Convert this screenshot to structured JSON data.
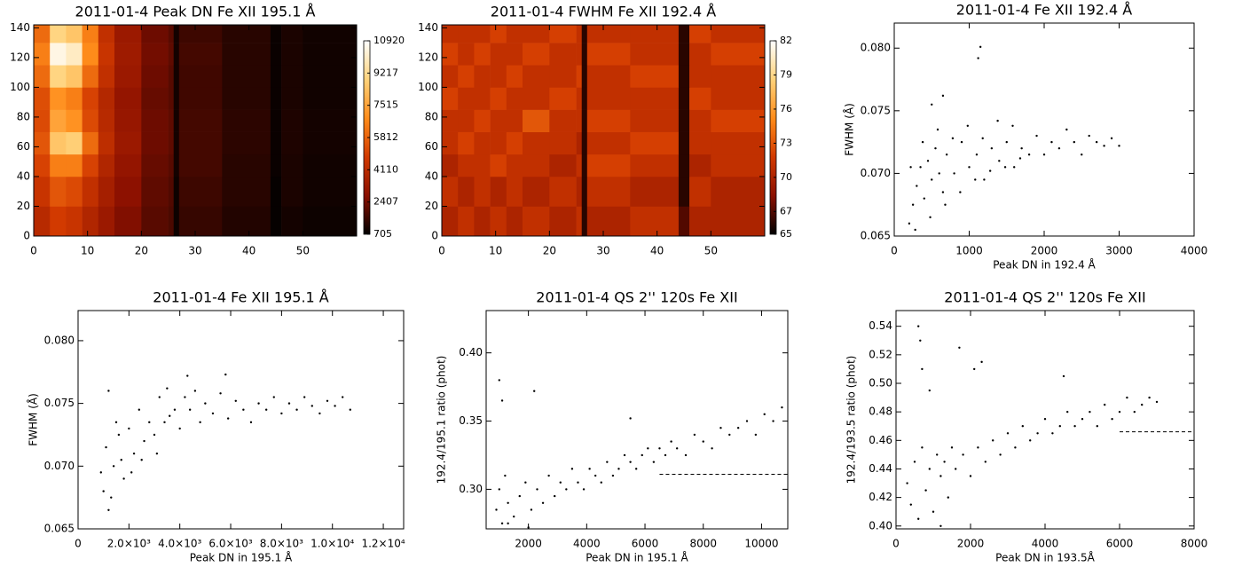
{
  "chart_data": [
    {
      "type": "heatmap",
      "title": "2011-01-4 Peak DN Fe XII 195.1 Å",
      "x": [
        0,
        3,
        6,
        9,
        12,
        15,
        20,
        25,
        26,
        27,
        35,
        44,
        46,
        50,
        60
      ],
      "y": [
        0,
        20,
        40,
        55,
        70,
        85,
        100,
        115,
        130,
        142
      ],
      "values": [
        [
          4000,
          4800,
          4500,
          3800,
          3200,
          2600,
          2000,
          1800,
          900,
          1500,
          1200,
          800,
          1000,
          900
        ],
        [
          4500,
          5500,
          5200,
          4300,
          3500,
          2800,
          2100,
          1900,
          900,
          1600,
          1300,
          800,
          1100,
          950
        ],
        [
          5000,
          6500,
          6500,
          5000,
          3800,
          3000,
          2200,
          2000,
          1000,
          1700,
          1300,
          850,
          1100,
          950
        ],
        [
          5500,
          8500,
          8800,
          6000,
          4200,
          3200,
          2300,
          2100,
          1000,
          1700,
          1350,
          850,
          1150,
          1000
        ],
        [
          5200,
          7500,
          7000,
          5200,
          4000,
          3100,
          2300,
          2100,
          1000,
          1700,
          1350,
          850,
          1150,
          1000
        ],
        [
          5300,
          7000,
          6500,
          5000,
          3900,
          3000,
          2200,
          2000,
          1000,
          1650,
          1300,
          850,
          1100,
          950
        ],
        [
          6000,
          9000,
          8500,
          6000,
          4300,
          3200,
          2300,
          2000,
          1000,
          1650,
          1300,
          850,
          1100,
          950
        ],
        [
          6500,
          10500,
          10000,
          6800,
          4500,
          3300,
          2400,
          2100,
          1000,
          1700,
          1300,
          850,
          1100,
          950
        ],
        [
          6000,
          9000,
          8500,
          6500,
          4300,
          3200,
          2300,
          2000,
          1000,
          1600,
          1300,
          850,
          1100,
          950
        ]
      ],
      "xlim": [
        0,
        60
      ],
      "xticks": [
        0,
        10,
        20,
        30,
        40,
        50
      ],
      "ylim": [
        0,
        142
      ],
      "yticks": [
        0,
        20,
        40,
        60,
        80,
        100,
        120,
        140
      ],
      "colorbar": {
        "lim": [
          705,
          10920
        ],
        "ticks": [
          705,
          2407,
          4110,
          5812,
          7515,
          9217,
          10920
        ]
      },
      "colors": [
        "#000000",
        "#8b1000",
        "#d23a00",
        "#ff8c1a",
        "#ffd27a",
        "#ffffff"
      ]
    },
    {
      "type": "heatmap",
      "title": "2011-01-4 FWHM  Fe XII 192.4 Å",
      "x": [
        0,
        3,
        6,
        9,
        12,
        15,
        20,
        25,
        26,
        27,
        35,
        44,
        46,
        50,
        60
      ],
      "y": [
        0,
        20,
        40,
        55,
        70,
        85,
        100,
        115,
        130,
        142
      ],
      "values": [
        [
          70,
          71,
          70,
          71,
          70,
          71,
          70,
          71,
          66,
          70,
          71,
          67,
          70,
          70
        ],
        [
          71,
          70,
          71,
          70,
          71,
          70,
          71,
          70,
          66,
          71,
          70,
          66,
          71,
          70
        ],
        [
          70,
          71,
          71,
          72,
          71,
          71,
          70,
          71,
          66,
          72,
          71,
          66,
          70,
          71
        ],
        [
          71,
          72,
          71,
          71,
          72,
          71,
          71,
          70,
          66,
          71,
          72,
          66,
          71,
          71
        ],
        [
          71,
          71,
          72,
          71,
          71,
          73,
          71,
          71,
          66,
          72,
          71,
          66,
          71,
          72
        ],
        [
          72,
          71,
          71,
          72,
          71,
          71,
          72,
          71,
          66,
          71,
          71,
          66,
          72,
          71
        ],
        [
          71,
          72,
          71,
          71,
          72,
          71,
          71,
          72,
          66,
          71,
          72,
          66,
          71,
          71
        ],
        [
          72,
          71,
          72,
          71,
          71,
          72,
          71,
          71,
          66,
          72,
          71,
          66,
          71,
          72
        ],
        [
          71,
          71,
          71,
          72,
          71,
          71,
          72,
          71,
          66,
          71,
          71,
          66,
          72,
          71
        ]
      ],
      "xlim": [
        0,
        60
      ],
      "xticks": [
        0,
        10,
        20,
        30,
        40,
        50
      ],
      "ylim": [
        0,
        142
      ],
      "yticks": [
        0,
        20,
        40,
        60,
        80,
        100,
        120,
        140
      ],
      "colorbar": {
        "lim": [
          65,
          82
        ],
        "ticks": [
          65,
          67,
          70,
          73,
          76,
          79,
          82
        ]
      },
      "colors": [
        "#000000",
        "#8b1000",
        "#d23a00",
        "#ff8c1a",
        "#ffd27a",
        "#ffffff"
      ]
    },
    {
      "type": "scatter",
      "title": "2011-01-4 Fe XII 192.4 Å",
      "xlabel": "Peak DN in 192.4 Å",
      "ylabel": "FWHM (Å)",
      "color": "#000000",
      "x": [
        200,
        250,
        300,
        350,
        400,
        450,
        500,
        550,
        600,
        650,
        700,
        800,
        900,
        1000,
        1100,
        1200,
        1300,
        1400,
        1500,
        1600,
        1700,
        1800,
        1900,
        2000,
        2100,
        2200,
        2300,
        2400,
        2500,
        2600,
        2700,
        2800,
        2900,
        3000,
        220,
        280,
        380,
        480,
        580,
        680,
        780,
        880,
        980,
        1080,
        1180,
        1280,
        1380,
        1480,
        1580,
        1680,
        1150,
        1120,
        500,
        650
      ],
      "values": [
        0.066,
        0.0675,
        0.069,
        0.0705,
        0.068,
        0.071,
        0.0695,
        0.072,
        0.07,
        0.0685,
        0.0715,
        0.07,
        0.0725,
        0.0705,
        0.0715,
        0.0695,
        0.072,
        0.071,
        0.0725,
        0.0705,
        0.072,
        0.0715,
        0.073,
        0.0715,
        0.0725,
        0.072,
        0.0735,
        0.0725,
        0.0715,
        0.073,
        0.0725,
        0.0722,
        0.0728,
        0.0722,
        0.0705,
        0.0655,
        0.0725,
        0.0665,
        0.0735,
        0.0675,
        0.0728,
        0.0685,
        0.0738,
        0.0695,
        0.0728,
        0.0702,
        0.0742,
        0.0705,
        0.0738,
        0.0712,
        0.0801,
        0.0792,
        0.0755,
        0.0762
      ],
      "xlim": [
        0,
        4000
      ],
      "xticks": [
        0,
        1000,
        2000,
        3000,
        4000
      ],
      "ylim": [
        0.065,
        0.082
      ],
      "yticks": [
        0.065,
        {
          "value": 0.07,
          "label": "0.070"
        },
        0.075,
        {
          "value": 0.08,
          "label": "0.080"
        }
      ]
    },
    {
      "type": "scatter",
      "title": "2011-01-4 Fe XII 195.1 Å",
      "xlabel": "Peak DN in 195.1 Å",
      "ylabel": "FWHM (Å)",
      "color": "#000000",
      "x": [
        1000,
        1100,
        1200,
        1400,
        1600,
        1800,
        2000,
        2200,
        2400,
        2600,
        2800,
        3000,
        3200,
        3400,
        3600,
        3800,
        4000,
        4200,
        4400,
        4600,
        4800,
        5000,
        5300,
        5600,
        5900,
        6200,
        6500,
        6800,
        7100,
        7400,
        7700,
        8000,
        8300,
        8600,
        8900,
        9200,
        9500,
        9800,
        10100,
        10400,
        10700,
        900,
        1300,
        1500,
        1700,
        2100,
        2500,
        3100,
        3500,
        4300,
        5800,
        1200
      ],
      "values": [
        0.068,
        0.0715,
        0.0665,
        0.07,
        0.0725,
        0.069,
        0.073,
        0.071,
        0.0745,
        0.072,
        0.0735,
        0.0725,
        0.0755,
        0.0735,
        0.074,
        0.0745,
        0.073,
        0.0755,
        0.0745,
        0.076,
        0.0735,
        0.075,
        0.0742,
        0.0758,
        0.0738,
        0.0752,
        0.0745,
        0.0735,
        0.075,
        0.0745,
        0.0755,
        0.0742,
        0.075,
        0.0745,
        0.0755,
        0.0748,
        0.0742,
        0.0752,
        0.0748,
        0.0755,
        0.0745,
        0.0695,
        0.0675,
        0.0735,
        0.0705,
        0.0695,
        0.0705,
        0.071,
        0.0762,
        0.0772,
        0.0773,
        0.076
      ],
      "xlim": [
        0,
        12800
      ],
      "xticks": [
        0,
        {
          "value": 2000,
          "label": "2.0×10³"
        },
        {
          "value": 4000,
          "label": "4.0×10³"
        },
        {
          "value": 6000,
          "label": "6.0×10³"
        },
        {
          "value": 8000,
          "label": "8.0×10³"
        },
        {
          "value": 10000,
          "label": "1.0×10⁴"
        },
        {
          "value": 12000,
          "label": "1.2×10⁴"
        }
      ],
      "ylim": [
        0.065,
        0.0824
      ],
      "yticks": [
        0.065,
        {
          "value": 0.07,
          "label": "0.070"
        },
        0.075,
        {
          "value": 0.08,
          "label": "0.080"
        }
      ]
    },
    {
      "type": "scatter",
      "title": "2011-01-4 QS 2'' 120s Fe XII",
      "xlabel": "Peak DN in 195.1 Å",
      "ylabel": "192.4/195.1 ratio (phot)",
      "color": "#000000",
      "x": [
        900,
        1000,
        1100,
        1200,
        1300,
        1500,
        1700,
        1900,
        2100,
        2300,
        2500,
        2700,
        2900,
        3100,
        3300,
        3500,
        3700,
        3900,
        4100,
        4300,
        4500,
        4700,
        4900,
        5100,
        5300,
        5500,
        5700,
        5900,
        6100,
        6300,
        6500,
        6700,
        6900,
        7100,
        7400,
        7700,
        8000,
        8300,
        8600,
        8900,
        9200,
        9500,
        9800,
        10100,
        10400,
        10700,
        1000,
        1100,
        2200,
        5500,
        1300,
        2000
      ],
      "values": [
        0.285,
        0.3,
        0.275,
        0.31,
        0.29,
        0.28,
        0.295,
        0.305,
        0.285,
        0.3,
        0.29,
        0.31,
        0.295,
        0.305,
        0.3,
        0.315,
        0.305,
        0.3,
        0.315,
        0.31,
        0.305,
        0.32,
        0.31,
        0.315,
        0.325,
        0.32,
        0.315,
        0.325,
        0.33,
        0.32,
        0.33,
        0.325,
        0.335,
        0.33,
        0.325,
        0.34,
        0.335,
        0.33,
        0.345,
        0.34,
        0.345,
        0.35,
        0.34,
        0.355,
        0.35,
        0.36,
        0.38,
        0.365,
        0.372,
        0.352,
        0.275,
        0.272
      ],
      "hline": {
        "value": 0.311,
        "xlim": [
          6500,
          10900
        ]
      },
      "xlim": [
        550,
        10900
      ],
      "xticks": [
        2000,
        4000,
        6000,
        8000,
        10000
      ],
      "ylim": [
        0.271,
        0.431
      ],
      "yticks": [
        {
          "value": 0.3,
          "label": "0.30"
        },
        0.35,
        {
          "value": 0.4,
          "label": "0.40"
        }
      ]
    },
    {
      "type": "scatter",
      "title": "2011-01-4 QS 2'' 120s Fe XII",
      "xlabel": "Peak DN in 193.5Å",
      "ylabel": "192.4/193.5 ratio (phot)",
      "color": "#000000",
      "x": [
        300,
        400,
        500,
        600,
        700,
        800,
        900,
        1000,
        1100,
        1200,
        1300,
        1400,
        1500,
        1600,
        1800,
        2000,
        2200,
        2400,
        2600,
        2800,
        3000,
        3200,
        3400,
        3600,
        3800,
        4000,
        4200,
        4400,
        4600,
        4800,
        5000,
        5200,
        5400,
        5600,
        5800,
        6000,
        6200,
        6400,
        6600,
        6800,
        7000,
        600,
        650,
        700,
        1700,
        2100,
        2300,
        4500,
        900,
        1200
      ],
      "values": [
        0.43,
        0.415,
        0.445,
        0.405,
        0.455,
        0.425,
        0.44,
        0.41,
        0.45,
        0.435,
        0.445,
        0.42,
        0.455,
        0.44,
        0.45,
        0.435,
        0.455,
        0.445,
        0.46,
        0.45,
        0.465,
        0.455,
        0.47,
        0.46,
        0.465,
        0.475,
        0.465,
        0.47,
        0.48,
        0.47,
        0.475,
        0.48,
        0.47,
        0.485,
        0.475,
        0.48,
        0.49,
        0.48,
        0.485,
        0.49,
        0.487,
        0.54,
        0.53,
        0.51,
        0.525,
        0.51,
        0.515,
        0.505,
        0.495,
        0.4
      ],
      "hline": {
        "value": 0.466,
        "xlim": [
          6000,
          8000
        ]
      },
      "xlim": [
        0,
        8000
      ],
      "xticks": [
        0,
        2000,
        4000,
        6000,
        8000
      ],
      "ylim": [
        0.398,
        0.551
      ],
      "yticks": [
        {
          "value": 0.4,
          "label": "0.40"
        },
        0.42,
        0.44,
        0.46,
        0.48,
        {
          "value": 0.5,
          "label": "0.50"
        },
        0.52,
        0.54
      ]
    }
  ]
}
